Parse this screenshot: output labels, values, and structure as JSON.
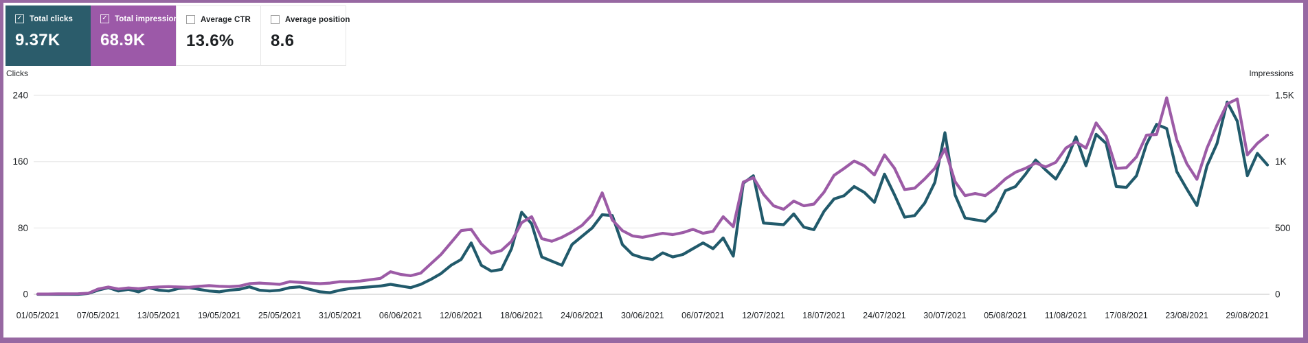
{
  "page": {
    "border_color": "#9768a2",
    "background": "#ffffff"
  },
  "metric_cards": [
    {
      "id": "total-clicks",
      "label": "Total clicks",
      "value": "9.37K",
      "checked": true,
      "bg": "#2b5c6b",
      "text_color": "#ffffff"
    },
    {
      "id": "total-impressions",
      "label": "Total impressions",
      "value": "68.9K",
      "checked": true,
      "bg": "#9c59a8",
      "text_color": "#ffffff"
    },
    {
      "id": "average-ctr",
      "label": "Average CTR",
      "value": "13.6%",
      "checked": false,
      "bg": "#ffffff",
      "text_color": "#1d2023"
    },
    {
      "id": "average-position",
      "label": "Average position",
      "value": "8.6",
      "checked": false,
      "bg": "#ffffff",
      "text_color": "#1d2023"
    }
  ],
  "chart_data": {
    "type": "line",
    "title": "",
    "grid": true,
    "legend_position": "none",
    "left_axis": {
      "title": "Clicks",
      "ticks": [
        "240",
        "160",
        "80",
        "0"
      ],
      "tick_values": [
        240,
        160,
        80,
        0
      ],
      "range": [
        0,
        240
      ]
    },
    "right_axis": {
      "title": "Impressions",
      "ticks": [
        "1.5K",
        "1K",
        "500",
        "0"
      ],
      "tick_values": [
        1500,
        1000,
        500,
        0
      ],
      "range": [
        0,
        1500
      ]
    },
    "x_tick_labels": [
      "01/05/2021",
      "07/05/2021",
      "13/05/2021",
      "19/05/2021",
      "25/05/2021",
      "31/05/2021",
      "06/06/2021",
      "12/06/2021",
      "18/06/2021",
      "24/06/2021",
      "30/06/2021",
      "06/07/2021",
      "12/07/2021",
      "18/07/2021",
      "24/07/2021",
      "30/07/2021",
      "05/08/2021",
      "11/08/2021",
      "17/08/2021",
      "23/08/2021",
      "29/08/2021"
    ],
    "x_start_date": "01/05/2021",
    "x_end_date": "31/08/2021",
    "series": [
      {
        "name": "Total clicks",
        "axis": "left",
        "color": "#215a6b",
        "values": [
          0,
          0,
          0,
          0,
          0,
          1,
          5,
          8,
          4,
          6,
          3,
          8,
          5,
          4,
          7,
          8,
          6,
          4,
          3,
          5,
          6,
          9,
          5,
          4,
          5,
          8,
          9,
          6,
          3,
          2,
          5,
          7,
          8,
          9,
          10,
          12,
          10,
          8,
          12,
          18,
          25,
          35,
          42,
          62,
          35,
          28,
          30,
          55,
          99,
          85,
          45,
          40,
          35,
          60,
          70,
          80,
          96,
          95,
          60,
          48,
          44,
          42,
          50,
          45,
          48,
          55,
          62,
          55,
          68,
          46,
          134,
          143,
          86,
          85,
          84,
          97,
          81,
          78,
          100,
          115,
          119,
          130,
          123,
          111,
          145,
          120,
          93,
          95,
          110,
          135,
          195,
          120,
          92,
          90,
          88,
          100,
          125,
          130,
          145,
          162,
          150,
          139,
          160,
          190,
          155,
          193,
          182,
          130,
          129,
          143,
          181,
          205,
          200,
          148,
          127,
          107,
          155,
          182,
          232,
          209,
          143,
          170,
          156
        ]
      },
      {
        "name": "Total impressions",
        "axis": "right",
        "color": "#9c5ba6",
        "values": [
          2,
          2,
          3,
          3,
          4,
          8,
          40,
          55,
          40,
          48,
          42,
          50,
          55,
          58,
          55,
          52,
          60,
          65,
          60,
          58,
          62,
          80,
          85,
          80,
          75,
          95,
          90,
          85,
          80,
          85,
          95,
          95,
          100,
          110,
          120,
          170,
          150,
          140,
          160,
          230,
          300,
          390,
          480,
          490,
          380,
          310,
          330,
          400,
          540,
          585,
          420,
          400,
          430,
          470,
          520,
          600,
          765,
          560,
          480,
          440,
          430,
          445,
          460,
          450,
          465,
          490,
          460,
          475,
          585,
          510,
          846,
          880,
          754,
          667,
          641,
          703,
          667,
          680,
          769,
          897,
          949,
          1005,
          969,
          900,
          1051,
          950,
          790,
          800,
          870,
          950,
          1097,
          850,
          744,
          760,
          744,
          800,
          870,
          920,
          950,
          990,
          960,
          995,
          1103,
          1150,
          1103,
          1292,
          1190,
          949,
          955,
          1036,
          1200,
          1205,
          1482,
          1164,
          985,
          867,
          1103,
          1277,
          1436,
          1472,
          1051,
          1138,
          1200
        ]
      }
    ]
  }
}
